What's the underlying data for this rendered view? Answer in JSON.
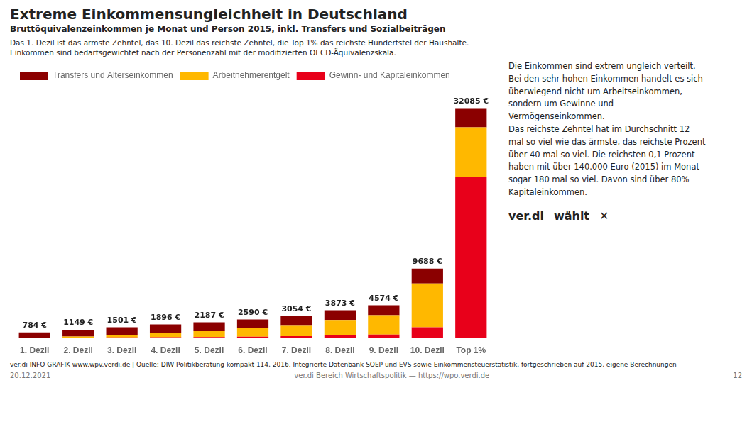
{
  "chart_data": {
    "type": "bar",
    "stacked": true,
    "title": "Extreme Einkommensungleichheit in Deutschland",
    "subtitle": "Bruttöquivalenzeinkommen je Monat und Person 2015, inkl. Transfers und Sozialbeiträgen",
    "categories": [
      "1. Dezil",
      "2. Dezil",
      "3. Dezil",
      "4. Dezil",
      "5. Dezil",
      "6. Dezil",
      "7. Dezil",
      "8. Dezil",
      "9. Dezil",
      "10. Dezil",
      "Top 1%"
    ],
    "series": [
      {
        "name": "Gewinn- und Kapitaleinkommen",
        "color": "#E8001A",
        "values": [
          0,
          50,
          80,
          110,
          140,
          190,
          260,
          380,
          480,
          1500,
          22500
        ]
      },
      {
        "name": "Arbeitnehmerentgelt",
        "color": "#FFB800",
        "values": [
          0,
          150,
          380,
          610,
          870,
          1180,
          1540,
          2120,
          2700,
          6100,
          6900
        ]
      },
      {
        "name": "Transfers und Alterseinkommen",
        "color": "#8B0000",
        "values": [
          784,
          949,
          1041,
          1176,
          1177,
          1220,
          1254,
          1373,
          1394,
          2088,
          2685
        ]
      }
    ],
    "totals": [
      784,
      1149,
      1501,
      1896,
      2187,
      2590,
      3054,
      3873,
      4574,
      9688,
      32085
    ],
    "total_labels": [
      "784 €",
      "1149 €",
      "1501 €",
      "1896 €",
      "2187 €",
      "2590 €",
      "3054 €",
      "3873 €",
      "4574 €",
      "9688 €",
      "32085 €"
    ],
    "ylim": [
      0,
      35000
    ],
    "tick_labels": "x",
    "grid": false,
    "legend": "upper left",
    "annotations": [
      "Das 1. Dezil ist das ärmste Zehntel, das 10. Dezil das reichste Zehntel, die Top 1% das reichste Hundertstel der Haushalte.",
      "Einkommen sind bedarfsgewichtet nach der Personenzahl mit der modifizierten OECD-Äquivalenzskala.",
      "Die Einkommen sind extrem ungleich verteilt.\nBei den sehr hohen Einkommen handelt es sich\nüberwiegend nicht um Arbeitseinkommen,\nsondern um Gewinne und\nVermögenseinkommen.\nDas reichste Zehntel hat im Durchschnitt 12\nmal so viel wie das ärmste, das reichste Prozent\nüber 40 mal so viel. Die reichsten 0,1 Prozent\nhaben mit über 140.000 Euro (2015) im Monat\nsogar 180 mal so viel. Davon sind über 80%\nKapitaleinkommen.",
      "ver.di INFO GRAFIK www.wpv.verdi.de | Quelle: DIW Politikberatung kompakt 114, 2016. Integrierte Datenbank SOEP und EVS sowie Einkommensteuerstatistik, fortgeschrieben auf 2015, eigene Berechnungen",
      "20.12.2021",
      "ver.di Bereich Wirtschaftspolitik — https://wpo.verdi.de",
      "12",
      "ver.di",
      "wählt",
      "✕"
    ]
  }
}
